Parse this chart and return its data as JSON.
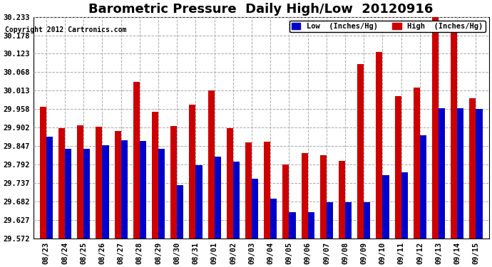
{
  "title": "Barometric Pressure  Daily High/Low  20120916",
  "copyright": "Copyright 2012 Cartronics.com",
  "categories": [
    "08/23",
    "08/24",
    "08/25",
    "08/26",
    "08/27",
    "08/28",
    "08/29",
    "08/30",
    "08/31",
    "09/01",
    "09/02",
    "09/03",
    "09/04",
    "09/05",
    "09/06",
    "09/07",
    "09/08",
    "09/09",
    "09/10",
    "09/11",
    "09/12",
    "09/13",
    "09/14",
    "09/15"
  ],
  "low_values": [
    29.875,
    29.84,
    29.84,
    29.85,
    29.865,
    29.862,
    29.84,
    29.73,
    29.79,
    29.815,
    29.8,
    29.75,
    29.69,
    29.65,
    29.65,
    29.68,
    29.68,
    29.68,
    29.76,
    29.77,
    29.88,
    29.96,
    29.96,
    29.958
  ],
  "high_values": [
    29.965,
    29.9,
    29.91,
    29.905,
    29.893,
    30.038,
    29.95,
    29.908,
    29.97,
    30.013,
    29.9,
    29.858,
    29.86,
    29.793,
    29.826,
    29.82,
    29.803,
    30.093,
    30.128,
    29.996,
    30.022,
    30.238,
    30.19,
    29.99
  ],
  "low_color": "#0000cc",
  "high_color": "#cc0000",
  "bg_color": "#ffffff",
  "grid_color": "#aaaaaa",
  "ylim_min": 29.572,
  "ylim_max": 30.233,
  "yticks": [
    29.572,
    29.627,
    29.682,
    29.737,
    29.792,
    29.847,
    29.902,
    29.958,
    30.013,
    30.068,
    30.123,
    30.178,
    30.233
  ],
  "legend_low_label": "Low  (Inches/Hg)",
  "legend_high_label": "High  (Inches/Hg)",
  "title_fontsize": 13,
  "tick_fontsize": 7.5,
  "bar_width": 0.35
}
